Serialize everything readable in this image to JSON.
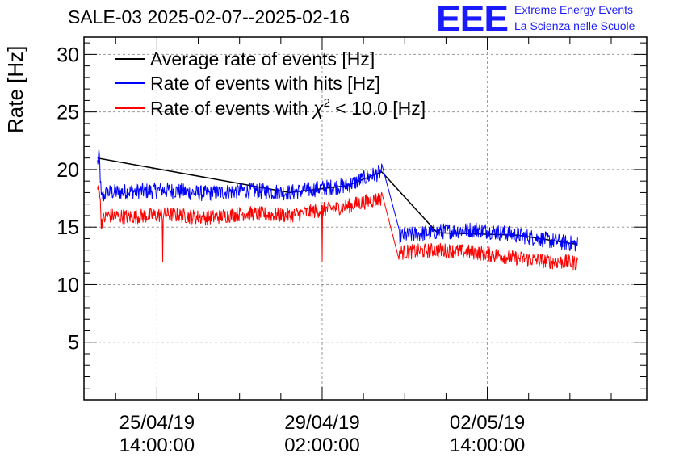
{
  "title": "SALE-03 2025-02-07--2025-02-16",
  "logo": {
    "text": "EEE",
    "line1": "Extreme Energy Events",
    "line2": "La Scienza nelle Scuole"
  },
  "chart_data": {
    "type": "line",
    "ylabel": "Rate [Hz]",
    "ylim": [
      0,
      31.5
    ],
    "yticks": [
      5,
      10,
      15,
      20,
      25,
      30
    ],
    "ytick_labels": [
      "5",
      "10",
      "15",
      "20",
      "25",
      "30"
    ],
    "x_unit": "hours since 25/04/19 00:00:00",
    "xlim": [
      -24,
      269
    ],
    "xticks": [
      14,
      100,
      186
    ],
    "xtick_labels": [
      [
        "25/04/19",
        "14:00:00"
      ],
      [
        "29/04/19",
        "02:00:00"
      ],
      [
        "02/05/19",
        "14:00:00"
      ]
    ],
    "grid": true,
    "legend_position": "top-left",
    "legend": [
      {
        "name": "Average rate of events [Hz]",
        "color": "#000000"
      },
      {
        "name": "Rate of events with hits [Hz]",
        "color": "#0000ff"
      },
      {
        "name_prefix": "Rate of events with ",
        "name_symbol": "χ",
        "name_sup": "2",
        "name_suffix": " < 10.0 [Hz]",
        "color": "#ff0000"
      }
    ],
    "series": [
      {
        "name": "Average rate of events [Hz]",
        "color": "#000000",
        "x": [
          -17,
          83,
          113,
          131,
          160,
          202,
          233
        ],
        "y": [
          21,
          18,
          18.6,
          19.8,
          14.5,
          14.3,
          13.5
        ]
      },
      {
        "name": "Rate of events with hits [Hz]",
        "color": "#0000ff",
        "x": [
          -17,
          -16,
          -15,
          -12,
          0,
          20,
          40,
          60,
          83,
          100,
          113,
          120,
          131,
          140,
          160,
          180,
          202,
          220,
          233
        ],
        "y": [
          20.6,
          21.2,
          17.5,
          18,
          18.1,
          18.2,
          17.9,
          18.2,
          18,
          18.4,
          18.6,
          19.1,
          19.8,
          14.2,
          14.6,
          14.8,
          14.3,
          13.8,
          13.5
        ],
        "noise": 0.7
      },
      {
        "name": "Rate of events with χ2 < 10.0 [Hz]",
        "color": "#ff0000",
        "x": [
          -17,
          -16,
          -15,
          -12,
          0,
          20,
          40,
          60,
          83,
          100,
          113,
          120,
          131,
          140,
          160,
          180,
          202,
          220,
          233
        ],
        "y": [
          18.3,
          18.5,
          15.5,
          16,
          15.9,
          16.1,
          15.8,
          16.2,
          16,
          16.5,
          16.8,
          17.1,
          17.5,
          12.8,
          13,
          12.8,
          12.3,
          12,
          11.9
        ],
        "noise": 0.65,
        "spikes": [
          {
            "x": 17,
            "y": 12
          },
          {
            "x": 100,
            "y": 12
          }
        ]
      }
    ]
  }
}
